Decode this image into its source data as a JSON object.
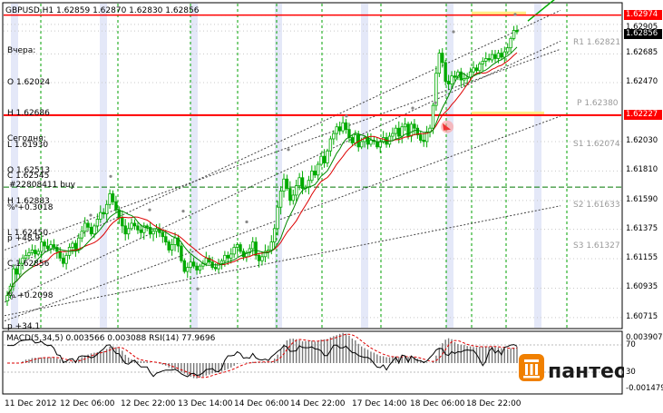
{
  "chart_data": {
    "type": "candlestick",
    "symbol_header": "GBPUSD,H1  1.62859 1.62870 1.62830 1.62856",
    "price_axis": [
      "1.62974",
      "1.62905",
      "1.62856",
      "1.62685",
      "1.62470",
      "1.62227",
      "1.62030",
      "1.61810",
      "1.61590",
      "1.61375",
      "1.61155",
      "1.60935",
      "1.60715"
    ],
    "ylim": [
      1.6064,
      1.6306
    ],
    "time_axis": [
      "11 Dec 2012",
      "12 Dec 06:00",
      "12 Dec 22:00",
      "13 Dec 14:00",
      "14 Dec 06:00",
      "14 Dec 22:00",
      "17 Dec 14:00",
      "18 Dec 06:00",
      "18 Dec 22:00"
    ],
    "yesterday": {
      "title": "Вчера:",
      "O": "O 1.62024",
      "H": "H 1.62686",
      "L": "L 1.61930",
      "C": "C 1.62545",
      "pct": "% +0.3018",
      "p": "p +48.9"
    },
    "today": {
      "title": "Сегодня:",
      "O": "O 1.62513",
      "H": "H 1.62883",
      "L": "L 1.62450",
      "C": "C 1.62856",
      "pct": "% +0.2098",
      "p": "p +34.1"
    },
    "order_label": "#22808411 buy",
    "pivots": [
      {
        "name": "R1",
        "value": "1.62821"
      },
      {
        "name": "P",
        "value": "1.62380"
      },
      {
        "name": "S1",
        "value": "1.62074"
      },
      {
        "name": "S2",
        "value": "1.61633"
      },
      {
        "name": "S3",
        "value": "1.61327"
      }
    ],
    "lines": {
      "resistance": 1.62974,
      "support": 1.62227,
      "order_level": 1.6169
    },
    "close_path": [
      1.6088,
      1.6095,
      1.6108,
      1.6104,
      1.6112,
      1.6116,
      1.6118,
      1.612,
      1.6122,
      1.6119,
      1.6121,
      1.6128,
      1.6125,
      1.6123,
      1.6126,
      1.6124,
      1.6121,
      1.6116,
      1.6112,
      1.6118,
      1.6124,
      1.6127,
      1.6122,
      1.6131,
      1.6136,
      1.6142,
      1.6139,
      1.6134,
      1.614,
      1.6145,
      1.615,
      1.6149,
      1.6156,
      1.6164,
      1.6158,
      1.6152,
      1.6146,
      1.614,
      1.6134,
      1.6138,
      1.6142,
      1.614,
      1.6137,
      1.6135,
      1.614,
      1.6139,
      1.6134,
      1.6136,
      1.6138,
      1.6135,
      1.6132,
      1.6128,
      1.6122,
      1.6126,
      1.6131,
      1.6125,
      1.6114,
      1.6106,
      1.6109,
      1.6113,
      1.611,
      1.6107,
      1.611,
      1.6112,
      1.6116,
      1.6113,
      1.6109,
      1.6108,
      1.6112,
      1.6114,
      1.6118,
      1.6116,
      1.6119,
      1.6124,
      1.6126,
      1.6121,
      1.6117,
      1.612,
      1.6123,
      1.6128,
      1.6118,
      1.6114,
      1.6117,
      1.6121,
      1.6122,
      1.6128,
      1.6138,
      1.6154,
      1.6166,
      1.6175,
      1.6168,
      1.6159,
      1.6163,
      1.617,
      1.6176,
      1.6168,
      1.6169,
      1.6174,
      1.6181,
      1.6178,
      1.6186,
      1.6192,
      1.6187,
      1.6196,
      1.6205,
      1.6209,
      1.6214,
      1.6211,
      1.6217,
      1.6212,
      1.6206,
      1.6202,
      1.6208,
      1.6199,
      1.6203,
      1.6206,
      1.6201,
      1.6204,
      1.6203,
      1.6199,
      1.6203,
      1.6206,
      1.6201,
      1.6207,
      1.6209,
      1.6213,
      1.6207,
      1.6214,
      1.6216,
      1.6207,
      1.6216,
      1.6213,
      1.6208,
      1.6204,
      1.6203,
      1.621,
      1.6213,
      1.623,
      1.6254,
      1.6269,
      1.6262,
      1.6248,
      1.6246,
      1.6252,
      1.6251,
      1.6255,
      1.6249,
      1.625,
      1.6251,
      1.6255,
      1.6258,
      1.6256,
      1.6261,
      1.6263,
      1.6265,
      1.6264,
      1.6268,
      1.6265,
      1.6269,
      1.6266,
      1.627,
      1.6273,
      1.628,
      1.6286,
      1.6285
    ],
    "indicators": {
      "macd_label": "MACD(5,34,5) 0.003566 0.003088",
      "rsi_label": "RSI(14) 77.9696",
      "axis": [
        "0.003907",
        "70",
        "30",
        "-0.001479"
      ]
    }
  },
  "branding": {
    "logo_text": "пантеон"
  },
  "colors": {
    "grid": "#00a000",
    "candle": "#00aa00",
    "candle_body_up": "#ffffff",
    "ma_red": "#dd0000",
    "ma_green": "#008800",
    "resistance": "#ff0000",
    "highlight": "#ffee88",
    "session_band": "#e4e8f8",
    "logo_orange": "#f08000"
  }
}
